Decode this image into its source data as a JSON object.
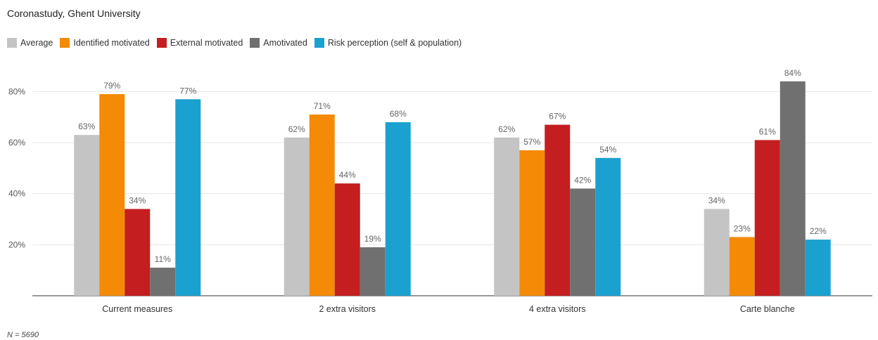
{
  "chart_data": {
    "type": "bar",
    "title": "Coronastudy, Ghent University",
    "xlabel": "",
    "ylabel": "",
    "ylim": [
      0,
      90
    ],
    "yticks": [
      20,
      40,
      60,
      80
    ],
    "ytick_labels": [
      "20%",
      "40%",
      "60%",
      "80%"
    ],
    "grid": true,
    "legend_position": "top-left",
    "categories": [
      "Current measures",
      "2 extra visitors",
      "4 extra visitors",
      "Carte blanche"
    ],
    "series": [
      {
        "name": "Average",
        "color": "#c4c4c4",
        "values": [
          63,
          62,
          62,
          34
        ],
        "labels": [
          "63%",
          "62%",
          "62%",
          "34%"
        ]
      },
      {
        "name": "Identified motivated",
        "color": "#f58a07",
        "values": [
          79,
          71,
          57,
          23
        ],
        "labels": [
          "79%",
          "71%",
          "57%",
          "23%"
        ]
      },
      {
        "name": "External motivated",
        "color": "#c41e20",
        "values": [
          34,
          44,
          67,
          61
        ],
        "labels": [
          "34%",
          "44%",
          "67%",
          "61%"
        ]
      },
      {
        "name": "Amotivated",
        "color": "#707070",
        "values": [
          11,
          19,
          42,
          84
        ],
        "labels": [
          "11%",
          "19%",
          "42%",
          "84%"
        ]
      },
      {
        "name": "Risk perception (self & population)",
        "color": "#1ba1d0",
        "values": [
          77,
          68,
          54,
          22
        ],
        "labels": [
          "77%",
          "68%",
          "54%",
          "22%"
        ]
      }
    ],
    "footnote": "N = 5690"
  }
}
